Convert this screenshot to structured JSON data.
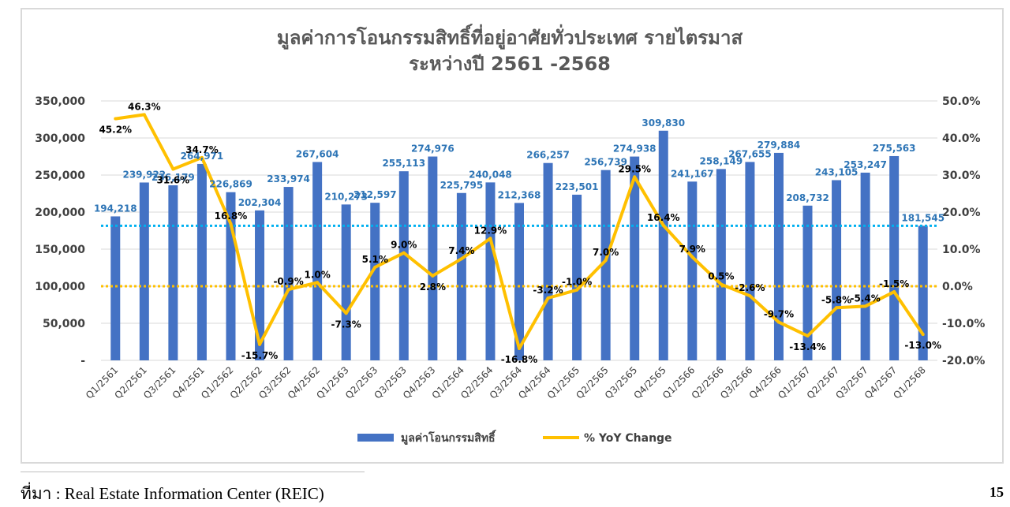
{
  "chart_data": {
    "type": "bar+line",
    "title_line1": "มูลค่าการโอนกรรมสิทธิ์ที่อยู่อาศัยทั่วประเทศ รายไตรมาส",
    "title_line2": "ระหว่างปี 2561 -2568",
    "categories": [
      "Q1/2561",
      "Q2/2561",
      "Q3/2561",
      "Q4/2561",
      "Q1/2562",
      "Q2/2562",
      "Q3/2562",
      "Q4/2562",
      "Q1/2563",
      "Q2/2563",
      "Q3/2563",
      "Q4/2563",
      "Q1/2564",
      "Q2/2564",
      "Q3/2564",
      "Q4/2564",
      "Q1/2565",
      "Q2/2565",
      "Q3/2565",
      "Q4/2565",
      "Q1/2566",
      "Q2/2566",
      "Q3/2566",
      "Q4/2566",
      "Q1/2567",
      "Q2/2567",
      "Q3/2567",
      "Q4/2567",
      "Q1/2568"
    ],
    "series": [
      {
        "name": "มูลค่าโอนกรรมสิทธิ์",
        "type": "bar",
        "axis": "left",
        "color": "#4472c4",
        "values": [
          194218,
          239922,
          236179,
          264971,
          226869,
          202304,
          233974,
          267604,
          210273,
          212597,
          255113,
          274976,
          225795,
          240048,
          212368,
          266257,
          223501,
          256739,
          274938,
          309830,
          241167,
          258149,
          267655,
          279884,
          208732,
          243105,
          253247,
          275563,
          181545
        ],
        "labels": [
          "194,218",
          "239,922",
          "236,179",
          "264,971",
          "226,869",
          "202,304",
          "233,974",
          "267,604",
          "210,273",
          "212,597",
          "255,113",
          "274,976",
          "225,795",
          "240,048",
          "212,368",
          "266,257",
          "223,501",
          "256,739",
          "274,938",
          "309,830",
          "241,167",
          "258,149",
          "267,655",
          "279,884",
          "208,732",
          "243,105",
          "253,247",
          "275,563",
          "181,545"
        ]
      },
      {
        "name": "% YoY Change",
        "type": "line",
        "axis": "right",
        "color": "#ffc000",
        "values": [
          45.2,
          46.3,
          31.6,
          34.7,
          16.8,
          -15.7,
          -0.9,
          1.0,
          -7.3,
          5.1,
          9.0,
          2.8,
          7.4,
          12.9,
          -16.8,
          -3.2,
          -1.0,
          7.0,
          29.5,
          16.4,
          7.9,
          0.5,
          -2.6,
          -9.7,
          -13.4,
          -5.8,
          -5.4,
          -1.5,
          -13.0
        ],
        "labels": [
          "45.2%",
          "46.3%",
          "31.6%",
          "34.7%",
          "16.8%",
          "-15.7%",
          "-0.9%",
          "1.0%",
          "-7.3%",
          "5.1%",
          "9.0%",
          "2.8%",
          "7.4%",
          "12.9%",
          "-16.8%",
          "-3.2%",
          "-1.0%",
          "7.0%",
          "29.5%",
          "16.4%",
          "7.9%",
          "0.5%",
          "-2.6%",
          "-9.7%",
          "-13.4%",
          "-5.8%",
          "-5.4%",
          "-1.5%",
          "-13.0%"
        ]
      }
    ],
    "reference_lines": [
      {
        "axis": "left",
        "value": 181545,
        "color": "#00b0f0",
        "style": "dotted"
      },
      {
        "axis": "right",
        "value": 0,
        "color": "#ffc000",
        "style": "dotted"
      }
    ],
    "ylim_left": [
      0,
      350000
    ],
    "yticks_left": [
      "-",
      "50,000",
      "100,000",
      "150,000",
      "200,000",
      "250,000",
      "300,000",
      "350,000"
    ],
    "ylim_right": [
      -20,
      50
    ],
    "yticks_right": [
      "-20.0%",
      "-10.0%",
      "0.0%",
      "10.0%",
      "20.0%",
      "30.0%",
      "40.0%",
      "50.0%"
    ],
    "grid": true,
    "legend": "bottom"
  },
  "source_text": "ที่มา : Real Estate Information Center (REIC)",
  "page_number": "15"
}
